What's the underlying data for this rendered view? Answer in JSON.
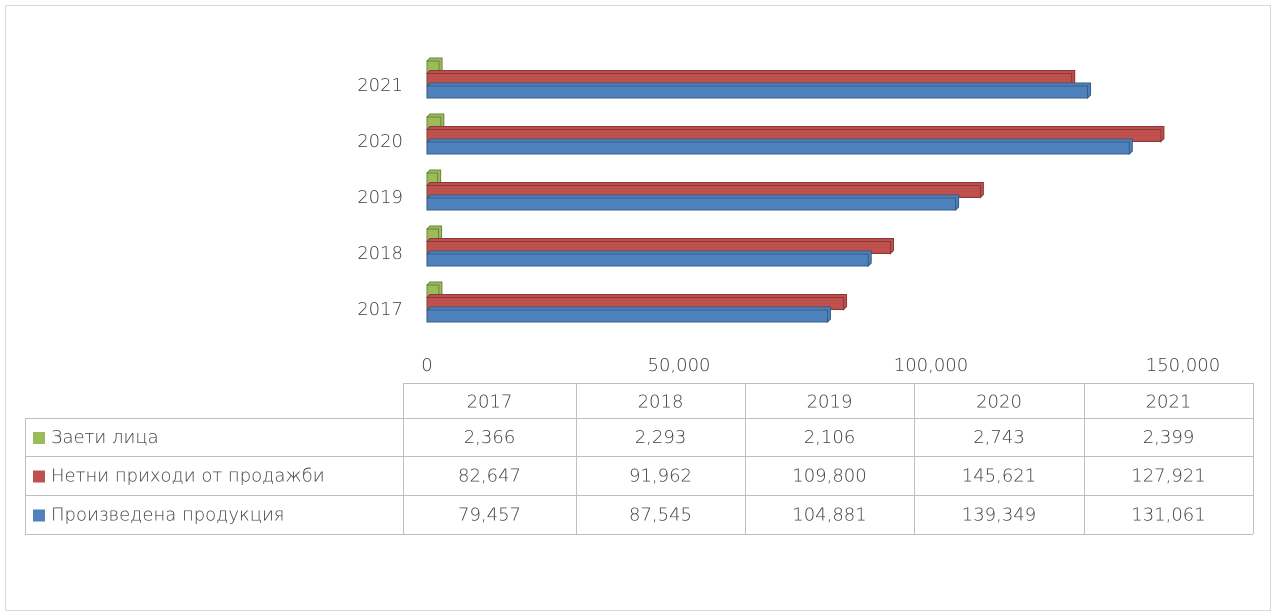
{
  "chart_data": {
    "type": "bar",
    "orientation": "horizontal",
    "categories": [
      "2017",
      "2018",
      "2019",
      "2020",
      "2021"
    ],
    "series": [
      {
        "name": "Заети лица",
        "color": "#9bbb59",
        "values": [
          2366,
          2293,
          2106,
          2743,
          2399
        ],
        "value_labels": [
          "2,366",
          "2,293",
          "2,106",
          "2,743",
          "2,399"
        ]
      },
      {
        "name": "Нетни приходи от продажби",
        "color": "#c0504d",
        "values": [
          82647,
          91962,
          109800,
          145621,
          127921
        ],
        "value_labels": [
          "82,647",
          "91,962",
          "109,800",
          "145,621",
          "127,921"
        ]
      },
      {
        "name": "Произведена продукция",
        "color": "#4f81bd",
        "values": [
          79457,
          87545,
          104881,
          139349,
          131061
        ],
        "value_labels": [
          "79,457",
          "87,545",
          "104,881",
          "139,349",
          "131,061"
        ]
      }
    ],
    "xlim": [
      0,
      150000
    ],
    "xticks": [
      0,
      {
        "value": 50000,
        "label": "50,000"
      },
      {
        "value": 100000,
        "label": "100,000"
      },
      {
        "value": 150000,
        "label": "150,000"
      }
    ],
    "grid": false,
    "data_table": true
  }
}
